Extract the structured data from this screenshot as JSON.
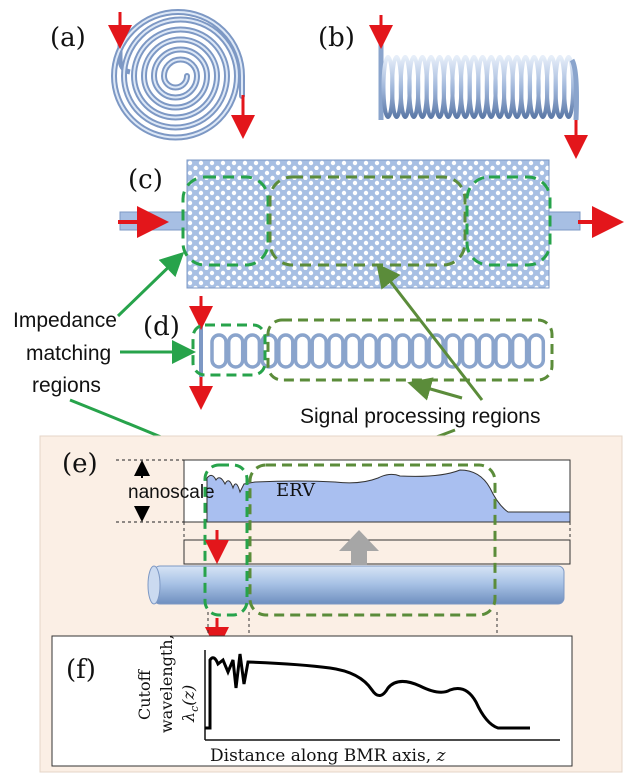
{
  "panels": {
    "a": "(a)",
    "b": "(b)",
    "c": "(c)",
    "d": "(d)",
    "e": "(e)",
    "f": "(f)"
  },
  "annotations": {
    "impedance_line1": "Impedance",
    "impedance_line2": "matching",
    "impedance_line3": "regions",
    "signal_processing": "Signal processing regions",
    "nanoscale": "nanoscale",
    "erv": "ERV"
  },
  "plot_f": {
    "ylabel_line1": "Cutoff",
    "ylabel_line2": "wavelength,",
    "ylabel_symbol": "λ",
    "ylabel_sub": "c",
    "ylabel_arg": "(z)",
    "xlabel_text": "Distance along BMR axis, ",
    "xlabel_var": "z"
  },
  "colors": {
    "fiber": "#a9c3e6",
    "fiber_dark": "#6f8fbf",
    "arrow_red": "#e3161b",
    "region_green": "#5b8c3a",
    "light_green": "#27a34b",
    "panel_bg": "#fbefe5",
    "gray_arrow": "#a6a6a6"
  }
}
